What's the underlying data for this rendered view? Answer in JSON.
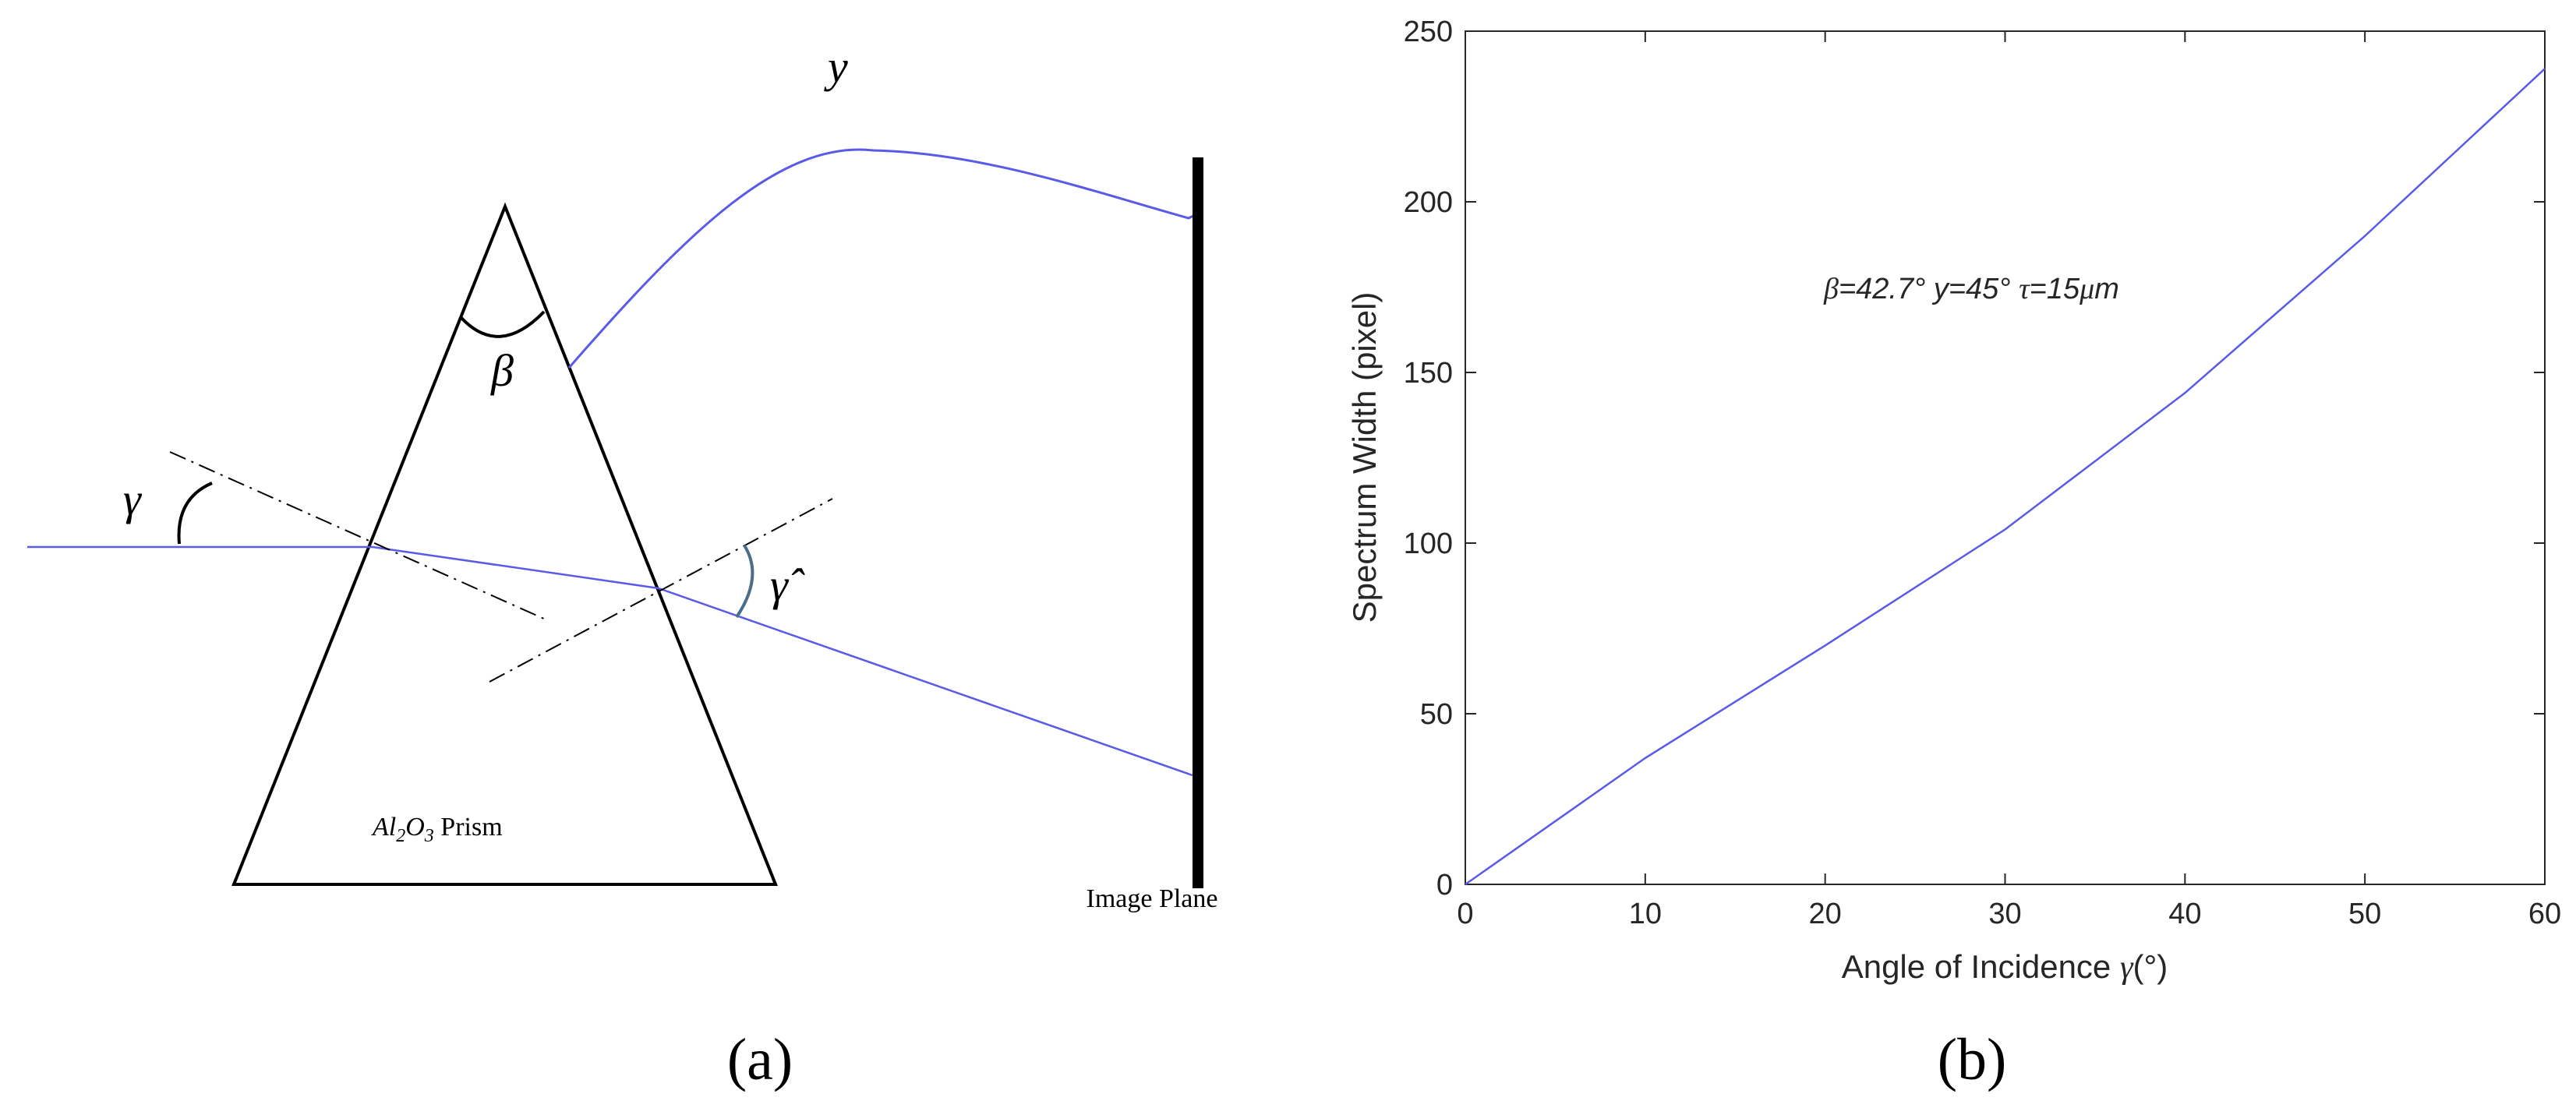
{
  "panel_a": {
    "caption": "(a)",
    "label_y": "y",
    "label_beta": "β",
    "label_gamma": "γ",
    "label_gamma_hat": "γ̂",
    "prism_label_al": "Al",
    "prism_label_sub2": "2",
    "prism_label_o": "O",
    "prism_label_sub3": "3",
    "prism_label_word": " Prism",
    "image_plane_label": "Image Plane",
    "ray_color": "#5a5ae8"
  },
  "panel_b": {
    "caption": "(b)",
    "annotation": {
      "beta": "β",
      "beta_value": "=42.7° ",
      "y_text": "y=45° ",
      "tau": "τ",
      "tau_value": "=15",
      "mu": "μ",
      "unit": "m"
    }
  },
  "chart_data": {
    "type": "line",
    "xlabel_text": "Angle of Incidence ",
    "xlabel_symbol": "γ",
    "xlabel_unit": "(°)",
    "ylabel": "Spectrum Width (pixel)",
    "xlim": [
      0,
      60
    ],
    "ylim": [
      0,
      250
    ],
    "x_ticks": [
      0,
      10,
      20,
      30,
      40,
      50,
      60
    ],
    "y_ticks": [
      0,
      50,
      100,
      150,
      200,
      250
    ],
    "grid": false,
    "line_color": "#5a5ae8",
    "series": [
      {
        "x": [
          0,
          10,
          20,
          30,
          40,
          50,
          60
        ],
        "values": [
          0,
          37,
          70,
          104,
          144,
          190,
          239
        ]
      }
    ]
  }
}
